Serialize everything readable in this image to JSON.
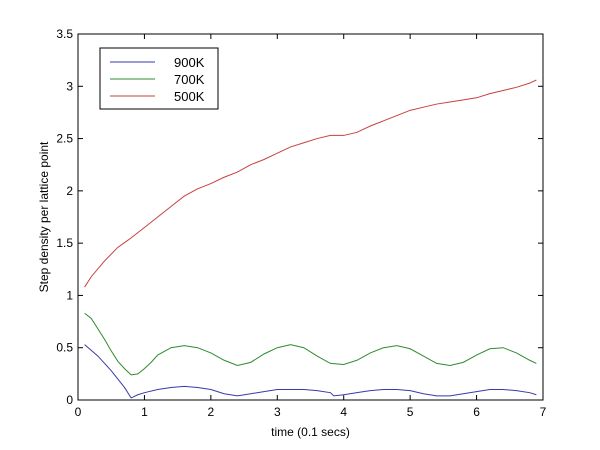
{
  "chart_data": {
    "type": "line",
    "title": "",
    "xlabel": "time (0.1 secs)",
    "ylabel": "Step density per lattice point",
    "xlim": [
      0,
      7
    ],
    "ylim": [
      0,
      3.5
    ],
    "xticks": [
      0,
      1,
      2,
      3,
      4,
      5,
      6,
      7
    ],
    "xtick_labels": [
      "0",
      "1",
      "2",
      "3",
      "4",
      "5",
      "6",
      "7"
    ],
    "yticks": [
      0,
      0.5,
      1,
      1.5,
      2,
      2.5,
      3,
      3.5
    ],
    "ytick_labels": [
      "0",
      "0.5",
      "1",
      "1.5",
      "2",
      "2.5",
      "3",
      "3.5"
    ],
    "grid": false,
    "legend_position": "top-left",
    "series": [
      {
        "name": "900K",
        "color": "#3a3aa8",
        "x": [
          0.1,
          0.3,
          0.5,
          0.7,
          0.8,
          0.9,
          1.0,
          1.2,
          1.4,
          1.6,
          1.8,
          2.0,
          2.2,
          2.4,
          2.6,
          2.8,
          3.0,
          3.2,
          3.4,
          3.6,
          3.8,
          3.85,
          4.0,
          4.2,
          4.4,
          4.6,
          4.8,
          5.0,
          5.2,
          5.4,
          5.6,
          5.8,
          6.0,
          6.2,
          6.4,
          6.6,
          6.8,
          6.9
        ],
        "y": [
          0.53,
          0.42,
          0.28,
          0.12,
          0.02,
          0.05,
          0.07,
          0.1,
          0.12,
          0.13,
          0.12,
          0.1,
          0.06,
          0.04,
          0.06,
          0.08,
          0.1,
          0.1,
          0.1,
          0.09,
          0.07,
          0.04,
          0.05,
          0.07,
          0.09,
          0.1,
          0.1,
          0.09,
          0.06,
          0.04,
          0.04,
          0.06,
          0.08,
          0.1,
          0.1,
          0.09,
          0.07,
          0.05
        ]
      },
      {
        "name": "700K",
        "color": "#2e8b2e",
        "x": [
          0.1,
          0.2,
          0.3,
          0.4,
          0.5,
          0.6,
          0.7,
          0.8,
          0.9,
          1.0,
          1.1,
          1.2,
          1.4,
          1.6,
          1.8,
          2.0,
          2.2,
          2.4,
          2.6,
          2.8,
          3.0,
          3.2,
          3.4,
          3.6,
          3.8,
          4.0,
          4.2,
          4.4,
          4.6,
          4.8,
          5.0,
          5.2,
          5.4,
          5.6,
          5.8,
          6.0,
          6.2,
          6.4,
          6.6,
          6.8,
          6.9
        ],
        "y": [
          0.83,
          0.78,
          0.68,
          0.58,
          0.47,
          0.37,
          0.3,
          0.24,
          0.25,
          0.3,
          0.36,
          0.43,
          0.5,
          0.52,
          0.5,
          0.45,
          0.38,
          0.33,
          0.36,
          0.44,
          0.5,
          0.53,
          0.5,
          0.42,
          0.35,
          0.34,
          0.38,
          0.45,
          0.5,
          0.52,
          0.49,
          0.42,
          0.35,
          0.33,
          0.36,
          0.43,
          0.49,
          0.5,
          0.45,
          0.38,
          0.35
        ]
      },
      {
        "name": "500K",
        "color": "#c84040",
        "x": [
          0.1,
          0.2,
          0.4,
          0.6,
          0.8,
          1.0,
          1.2,
          1.4,
          1.6,
          1.8,
          2.0,
          2.2,
          2.4,
          2.6,
          2.8,
          3.0,
          3.2,
          3.4,
          3.6,
          3.8,
          4.0,
          4.2,
          4.4,
          4.6,
          4.8,
          5.0,
          5.2,
          5.4,
          5.6,
          5.8,
          6.0,
          6.2,
          6.4,
          6.6,
          6.8,
          6.9
        ],
        "y": [
          1.08,
          1.18,
          1.33,
          1.46,
          1.55,
          1.65,
          1.75,
          1.85,
          1.95,
          2.02,
          2.07,
          2.13,
          2.18,
          2.25,
          2.3,
          2.36,
          2.42,
          2.46,
          2.5,
          2.53,
          2.53,
          2.56,
          2.62,
          2.67,
          2.72,
          2.77,
          2.8,
          2.83,
          2.85,
          2.87,
          2.89,
          2.93,
          2.96,
          2.99,
          3.03,
          3.06
        ]
      }
    ]
  }
}
